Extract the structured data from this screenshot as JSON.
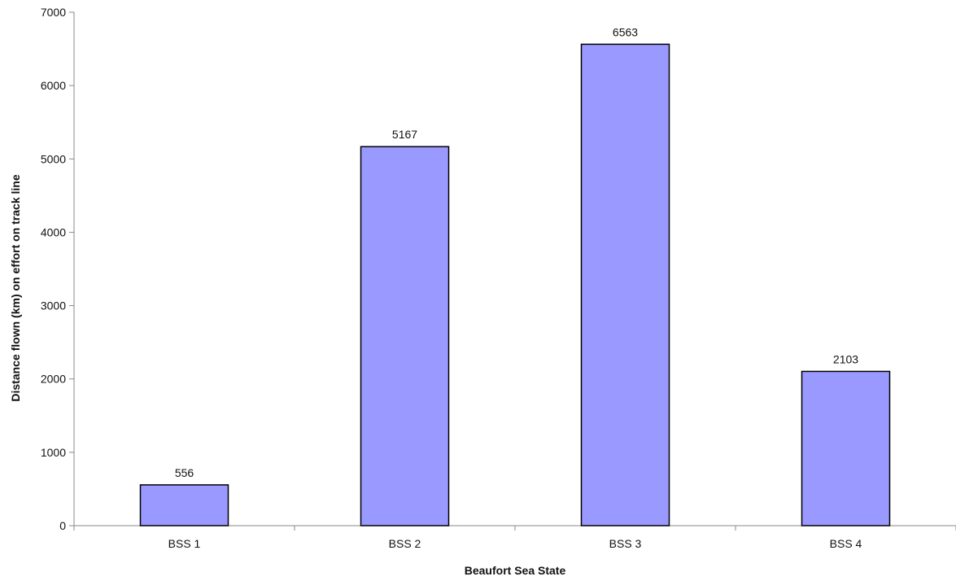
{
  "chart_data": {
    "type": "bar",
    "categories": [
      "BSS 1",
      "BSS 2",
      "BSS 3",
      "BSS 4"
    ],
    "values": [
      556,
      5167,
      6563,
      2103
    ],
    "data_labels": [
      "556",
      "5167",
      "6563",
      "2103"
    ],
    "title": "",
    "xlabel": "Beaufort Sea State",
    "ylabel": "Distance flown (km) on effort on track line",
    "ylim": [
      0,
      7000
    ],
    "yticks": [
      0,
      1000,
      2000,
      3000,
      4000,
      5000,
      6000,
      7000
    ],
    "grid": false,
    "legend": "none",
    "bar_color": "#9999ff",
    "bar_edge_color": "#000000",
    "axis_color": "#888888"
  }
}
